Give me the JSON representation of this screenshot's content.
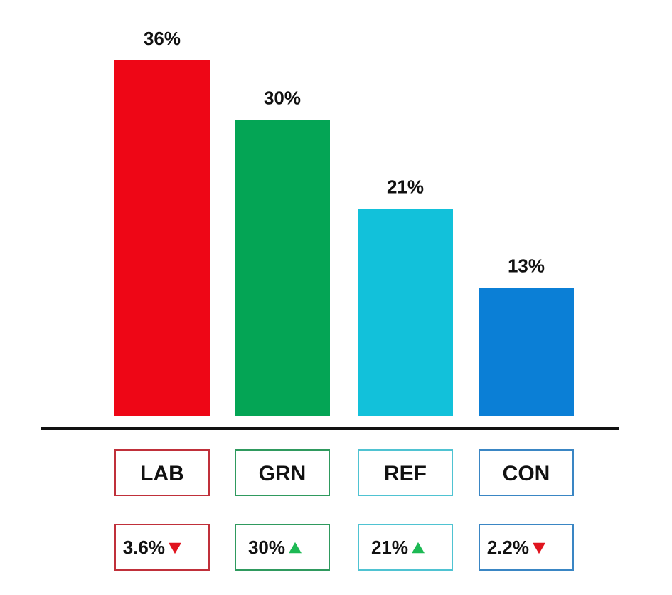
{
  "chart_data": {
    "type": "bar",
    "title": "",
    "xlabel": "",
    "ylabel": "",
    "ylim": [
      0,
      36
    ],
    "categories": [
      "LAB",
      "GRN",
      "REF",
      "CON"
    ],
    "values": [
      36,
      30,
      21,
      13
    ],
    "value_labels": [
      "36%",
      "30%",
      "21%",
      "13%"
    ],
    "colors": [
      "#ee0616",
      "#04a555",
      "#12c1da",
      "#0b7fd6"
    ],
    "label_box_colors": [
      "#c0303a",
      "#2f9a5e",
      "#4fc3d2",
      "#3a86c4"
    ],
    "changes": [
      {
        "label": "3.6%",
        "direction": "down"
      },
      {
        "label": "30%",
        "direction": "up"
      },
      {
        "label": "21%",
        "direction": "up"
      },
      {
        "label": "2.2%",
        "direction": "down"
      }
    ],
    "change_colors": {
      "up": "#1db954",
      "down": "#e0141e"
    },
    "grid": false,
    "legend": "none"
  }
}
